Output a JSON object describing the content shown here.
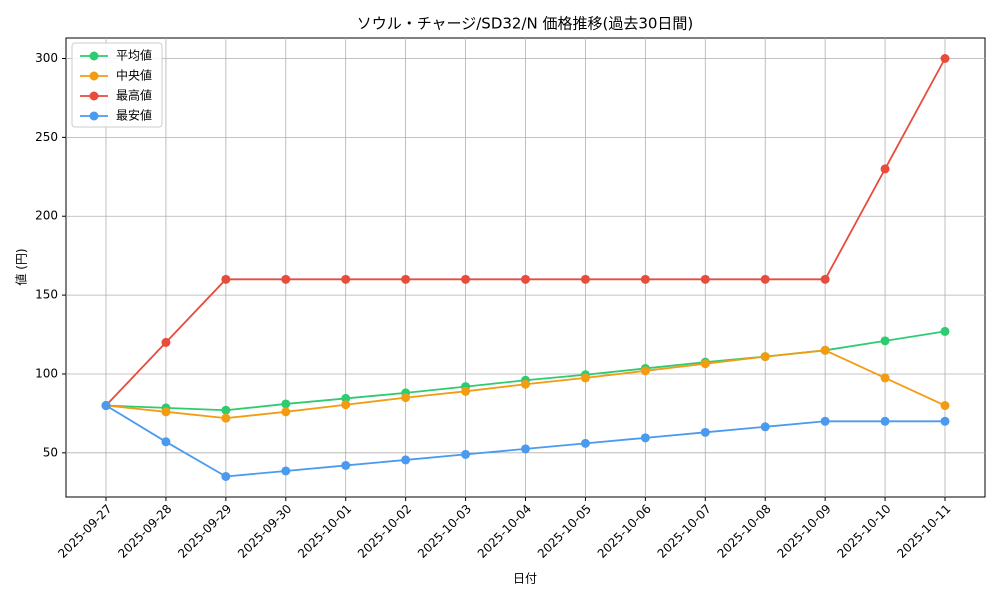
{
  "chart_data": {
    "type": "line",
    "title": "ソウル・チャージ/SD32/N 価格推移(過去30日間)",
    "x_label": "日付",
    "y_label": "値 (円)",
    "categories": [
      "2025-09-27",
      "2025-09-28",
      "2025-09-29",
      "2025-09-30",
      "2025-10-01",
      "2025-10-02",
      "2025-10-03",
      "2025-10-04",
      "2025-10-05",
      "2025-10-06",
      "2025-10-07",
      "2025-10-08",
      "2025-10-09",
      "2025-10-10",
      "2025-10-11"
    ],
    "series": [
      {
        "name": "平均値",
        "color": "#2ecc71",
        "values": [
          80,
          78.5,
          77,
          81,
          84.5,
          88,
          92,
          96,
          99.5,
          103.5,
          107.5,
          111,
          115,
          121,
          127
        ]
      },
      {
        "name": "中央値",
        "color": "#f39c12",
        "values": [
          80,
          76,
          72,
          76,
          80.5,
          85,
          89,
          93.5,
          97.5,
          102,
          106.5,
          111,
          115,
          97.5,
          80
        ]
      },
      {
        "name": "最高値",
        "color": "#e74c3c",
        "values": [
          80,
          120,
          160,
          160,
          160,
          160,
          160,
          160,
          160,
          160,
          160,
          160,
          160,
          230,
          300
        ]
      },
      {
        "name": "最安値",
        "color": "#4a9af0",
        "values": [
          80,
          57,
          35,
          38.5,
          42,
          45.5,
          49,
          52.5,
          56,
          59.5,
          63,
          66.5,
          70,
          70,
          70
        ]
      }
    ],
    "ylim": [
      22,
      313
    ],
    "yticks": [
      50,
      100,
      150,
      200,
      250,
      300
    ],
    "grid": true,
    "legend": "upper-left"
  }
}
